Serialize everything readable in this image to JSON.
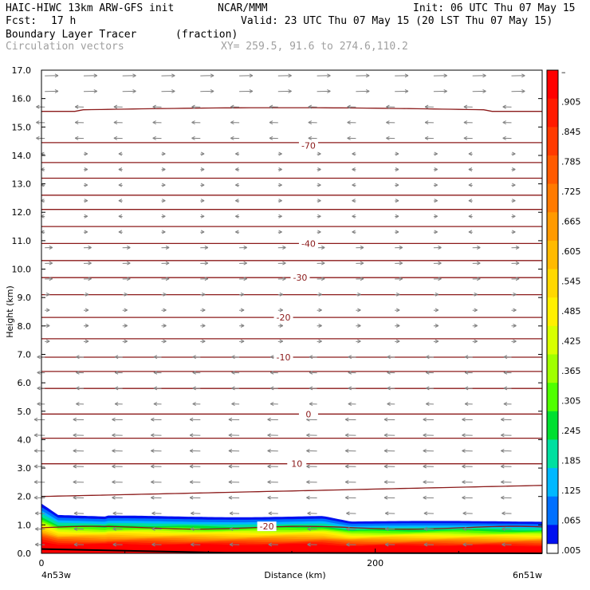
{
  "header": {
    "line1_left": "HAIC-HIWC 13km ARW-GFS init",
    "line1_center": "NCAR/MMM",
    "line1_right": "Init: 06 UTC Thu 07 May 15",
    "line2_left": "Fcst:",
    "line2_hours": "17 h",
    "line2_right": "Valid: 23 UTC Thu 07 May 15 (20 LST Thu 07 May 15)",
    "field_name": "Boundary Layer Tracer",
    "field_units": "(fraction)",
    "vector_name": "Circulation vectors",
    "xy_text": "XY= 259.5, 91.6 to 274.6,110.2"
  },
  "chart_data": {
    "type": "cross-section",
    "ylabel": "Height (km)",
    "xlabel": "Distance (km)",
    "ylim": [
      0,
      17
    ],
    "xlim": [
      0,
      300
    ],
    "y_ticks": [
      "0.0",
      "1.0",
      "2.0",
      "3.0",
      "4.0",
      "5.0",
      "6.0",
      "7.0",
      "8.0",
      "9.0",
      "10.0",
      "11.0",
      "12.0",
      "13.0",
      "14.0",
      "15.0",
      "16.0",
      "17.0"
    ],
    "x_ticks": [
      {
        "value": 0,
        "label": "0"
      },
      {
        "value": 200,
        "label": "200"
      }
    ],
    "left_end_label": "4n53w",
    "right_end_label": "6n51w",
    "contour_labels": [
      {
        "text": "-70",
        "x": 160,
        "y": 14.35
      },
      {
        "text": "-40",
        "x": 160,
        "y": 10.9
      },
      {
        "text": "-30",
        "x": 155,
        "y": 9.7
      },
      {
        "text": "-20",
        "x": 145,
        "y": 8.3
      },
      {
        "text": "-10",
        "x": 145,
        "y": 6.9
      },
      {
        "text": "0",
        "x": 160,
        "y": 4.9
      },
      {
        "text": "10",
        "x": 153,
        "y": 3.15
      },
      {
        "text": "-20",
        "x": 135,
        "y": 0.95
      }
    ],
    "colorbar": {
      "labels": [
        "–",
        ".905",
        ".845",
        ".785",
        ".725",
        ".665",
        ".605",
        ".545",
        ".485",
        ".425",
        ".365",
        ".305",
        ".245",
        ".185",
        ".125",
        ".065",
        ".005"
      ],
      "colors": [
        "#ff0000",
        "#ff1a00",
        "#ff3a00",
        "#ff5a00",
        "#ff7a00",
        "#ff9a00",
        "#ffba00",
        "#ffd800",
        "#fff000",
        "#d8ff00",
        "#a0ff00",
        "#50ff00",
        "#00e030",
        "#00e0a0",
        "#00b8ff",
        "#0070ff",
        "#0010f0"
      ]
    },
    "colors": {
      "contour": "#8b1a1a",
      "vector": "#808080"
    }
  }
}
